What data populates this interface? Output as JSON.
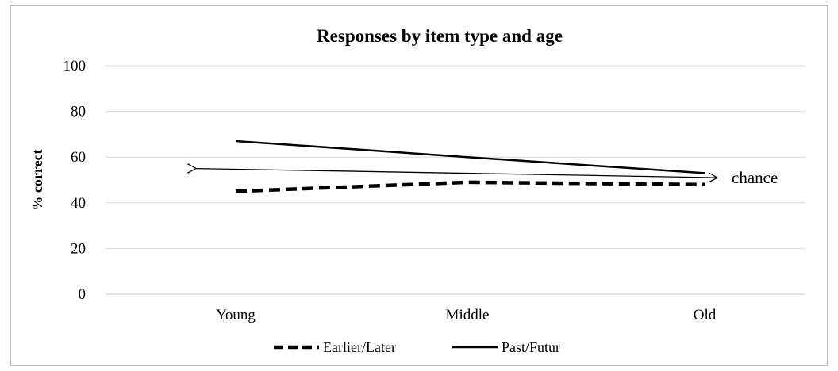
{
  "chart_data": {
    "type": "line",
    "title": "Responses by item type and age",
    "ylabel": "% correct",
    "xlabel": "",
    "categories": [
      "Young",
      "Middle",
      "Old"
    ],
    "ylim": [
      0,
      100
    ],
    "yticks": [
      0,
      20,
      40,
      60,
      80,
      100
    ],
    "grid": true,
    "legend_position": "bottom",
    "series": [
      {
        "name": "Earlier/Later",
        "values": [
          45,
          49,
          48
        ],
        "style": "dashed",
        "color": "#000000"
      },
      {
        "name": "Past/Futur",
        "values": [
          67,
          60,
          53
        ],
        "style": "solid",
        "color": "#000000"
      }
    ],
    "annotations": [
      {
        "text": "chance",
        "type": "double-arrow",
        "from_category": "Young",
        "to_category": "Old",
        "y_from": 55,
        "y_to": 51
      }
    ]
  }
}
